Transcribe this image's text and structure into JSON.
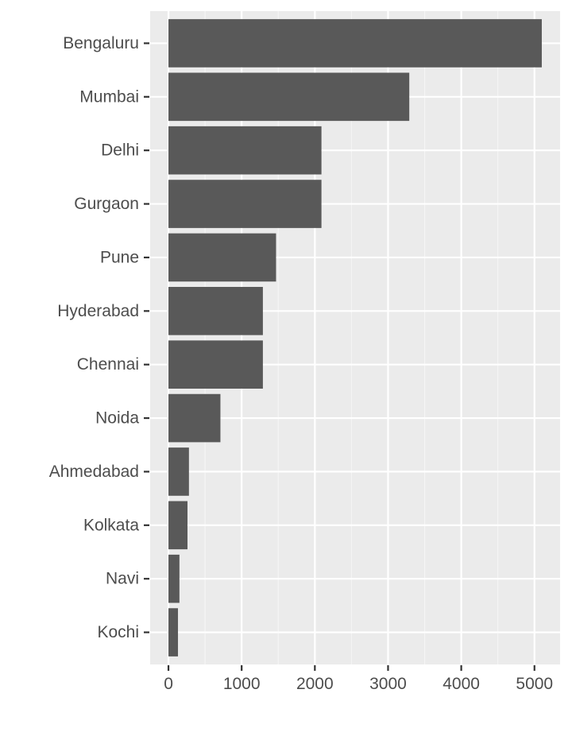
{
  "chart_data": {
    "type": "bar",
    "orientation": "horizontal",
    "categories": [
      "Bengaluru",
      "Mumbai",
      "Delhi",
      "Gurgaon",
      "Pune",
      "Hyderabad",
      "Chennai",
      "Noida",
      "Ahmedabad",
      "Kolkata",
      "Navi",
      "Kochi"
    ],
    "values": [
      5100,
      3290,
      2090,
      2090,
      1470,
      1290,
      1290,
      710,
      280,
      260,
      150,
      130
    ],
    "xlim": [
      -250,
      5350
    ],
    "xticks": [
      0,
      1000,
      2000,
      3000,
      4000,
      5000
    ],
    "xtick_labels": [
      "0",
      "1000",
      "2000",
      "3000",
      "4000",
      "5000"
    ],
    "grid": true,
    "colors": {
      "bar": "#595959",
      "panel": "#ebebeb",
      "grid_major": "#ffffff",
      "grid_minor": "#f5f5f5",
      "tick_text": "#4d4d4d",
      "tick_mark": "#333333"
    }
  }
}
